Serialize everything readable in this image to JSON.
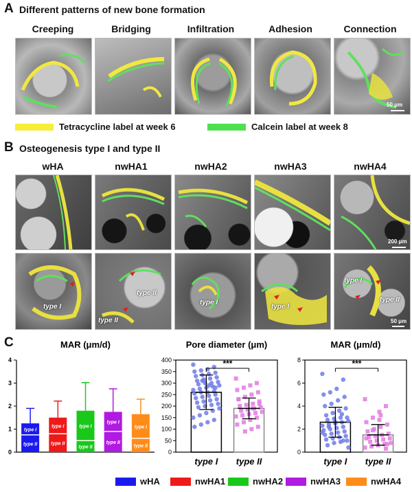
{
  "panel_a": {
    "letter": "A",
    "title": "Different patterns of new bone formation",
    "columns": [
      "Creeping",
      "Bridging",
      "Infiltration",
      "Adhesion",
      "Connection"
    ],
    "scalebar": "50 μm",
    "legend": [
      {
        "label": "Tetracycline label at week 6",
        "color": "#f5ef3a"
      },
      {
        "label": "Calcein label at week 8",
        "color": "#4fe04f"
      }
    ]
  },
  "panel_b": {
    "letter": "B",
    "title": "Osteogenesis type I and type II",
    "columns": [
      "wHA",
      "nwHA1",
      "nwHA2",
      "nwHA3",
      "nwHA4"
    ],
    "scalebar_top": "200 μm",
    "scalebar_bottom": "50 μm",
    "labels": {
      "type1": "type I",
      "type2": "type II"
    }
  },
  "panel_c": {
    "letter": "C",
    "legend": [
      {
        "label": "wHA",
        "color": "#1a1aee"
      },
      {
        "label": "nwHA1",
        "color": "#ee1a1a"
      },
      {
        "label": "nwHA2",
        "color": "#1ac81a"
      },
      {
        "label": "nwHA3",
        "color": "#b11ae0"
      },
      {
        "label": "nwHA4",
        "color": "#ff8c1a"
      }
    ]
  },
  "chart_data": [
    {
      "type": "bar",
      "title": "MAR (μm/d)",
      "categories": [
        "wHA",
        "nwHA1",
        "nwHA2",
        "nwHA3",
        "nwHA4"
      ],
      "ylim": [
        0,
        4
      ],
      "yticks": [
        0,
        1,
        2,
        3,
        4
      ],
      "series": [
        {
          "name": "type I",
          "values": [
            0.5,
            0.7,
            1.3,
            0.85,
            1.05
          ]
        },
        {
          "name": "type II",
          "values": [
            0.75,
            0.8,
            0.5,
            0.9,
            0.6
          ]
        }
      ],
      "error_top": [
        1.9,
        2.22,
        3.02,
        2.75,
        2.3
      ],
      "colors": [
        "#1a1aee",
        "#ee1a1a",
        "#1ac81a",
        "#b11ae0",
        "#ff8c1a"
      ],
      "stack_labels": [
        "type I",
        "type II"
      ]
    },
    {
      "type": "scatter",
      "title": "Pore diameter (μm)",
      "categories": [
        "type I",
        "type II"
      ],
      "ylim": [
        0,
        400
      ],
      "yticks": [
        0,
        50,
        100,
        150,
        200,
        250,
        300,
        350,
        400
      ],
      "means": [
        260,
        190
      ],
      "sd": [
        75,
        45
      ],
      "significance": "***",
      "points": {
        "type I": [
          380,
          370,
          360,
          355,
          350,
          345,
          340,
          335,
          330,
          325,
          320,
          315,
          310,
          305,
          300,
          300,
          295,
          290,
          285,
          280,
          275,
          270,
          265,
          260,
          260,
          255,
          250,
          245,
          240,
          235,
          230,
          225,
          220,
          215,
          210,
          205,
          200,
          195,
          190,
          180,
          170,
          160,
          150,
          140,
          130,
          120,
          110,
          280,
          290,
          310
        ],
        "type II": [
          320,
          300,
          290,
          280,
          270,
          260,
          250,
          240,
          230,
          220,
          210,
          205,
          200,
          195,
          190,
          185,
          180,
          175,
          170,
          165,
          160,
          155,
          150,
          140,
          130,
          120,
          110,
          100,
          90,
          230,
          210,
          190
        ]
      },
      "colors": [
        "#6f7be8",
        "#e07be0"
      ]
    },
    {
      "type": "scatter",
      "title": "MAR (μm/d)",
      "categories": [
        "type I",
        "type II"
      ],
      "ylim": [
        0,
        8
      ],
      "yticks": [
        0,
        2,
        4,
        6,
        8
      ],
      "means": [
        2.6,
        1.5
      ],
      "sd": [
        1.3,
        0.9
      ],
      "significance": "***",
      "points": {
        "type I": [
          6.8,
          6.3,
          5.5,
          5.2,
          5.0,
          4.8,
          4.5,
          4.2,
          4.0,
          3.8,
          3.6,
          3.4,
          3.2,
          3.0,
          3.0,
          2.9,
          2.8,
          2.7,
          2.6,
          2.5,
          2.4,
          2.3,
          2.2,
          2.1,
          2.0,
          1.9,
          1.8,
          1.7,
          1.6,
          1.5,
          1.4,
          1.3,
          1.2,
          1.1,
          1.0,
          0.9,
          0.8,
          0.6,
          0.4,
          3.3,
          2.6,
          2.2,
          1.7,
          1.0
        ],
        "type II": [
          4.6,
          4.0,
          3.5,
          3.0,
          2.6,
          2.4,
          2.2,
          2.0,
          1.8,
          1.6,
          1.5,
          1.4,
          1.3,
          1.2,
          1.1,
          1.0,
          0.9,
          0.8,
          0.7,
          0.6,
          0.5,
          0.4,
          0.3,
          2.8,
          1.9,
          1.2,
          0.7,
          3.2
        ]
      },
      "colors": [
        "#6f7be8",
        "#e07be0"
      ]
    }
  ]
}
